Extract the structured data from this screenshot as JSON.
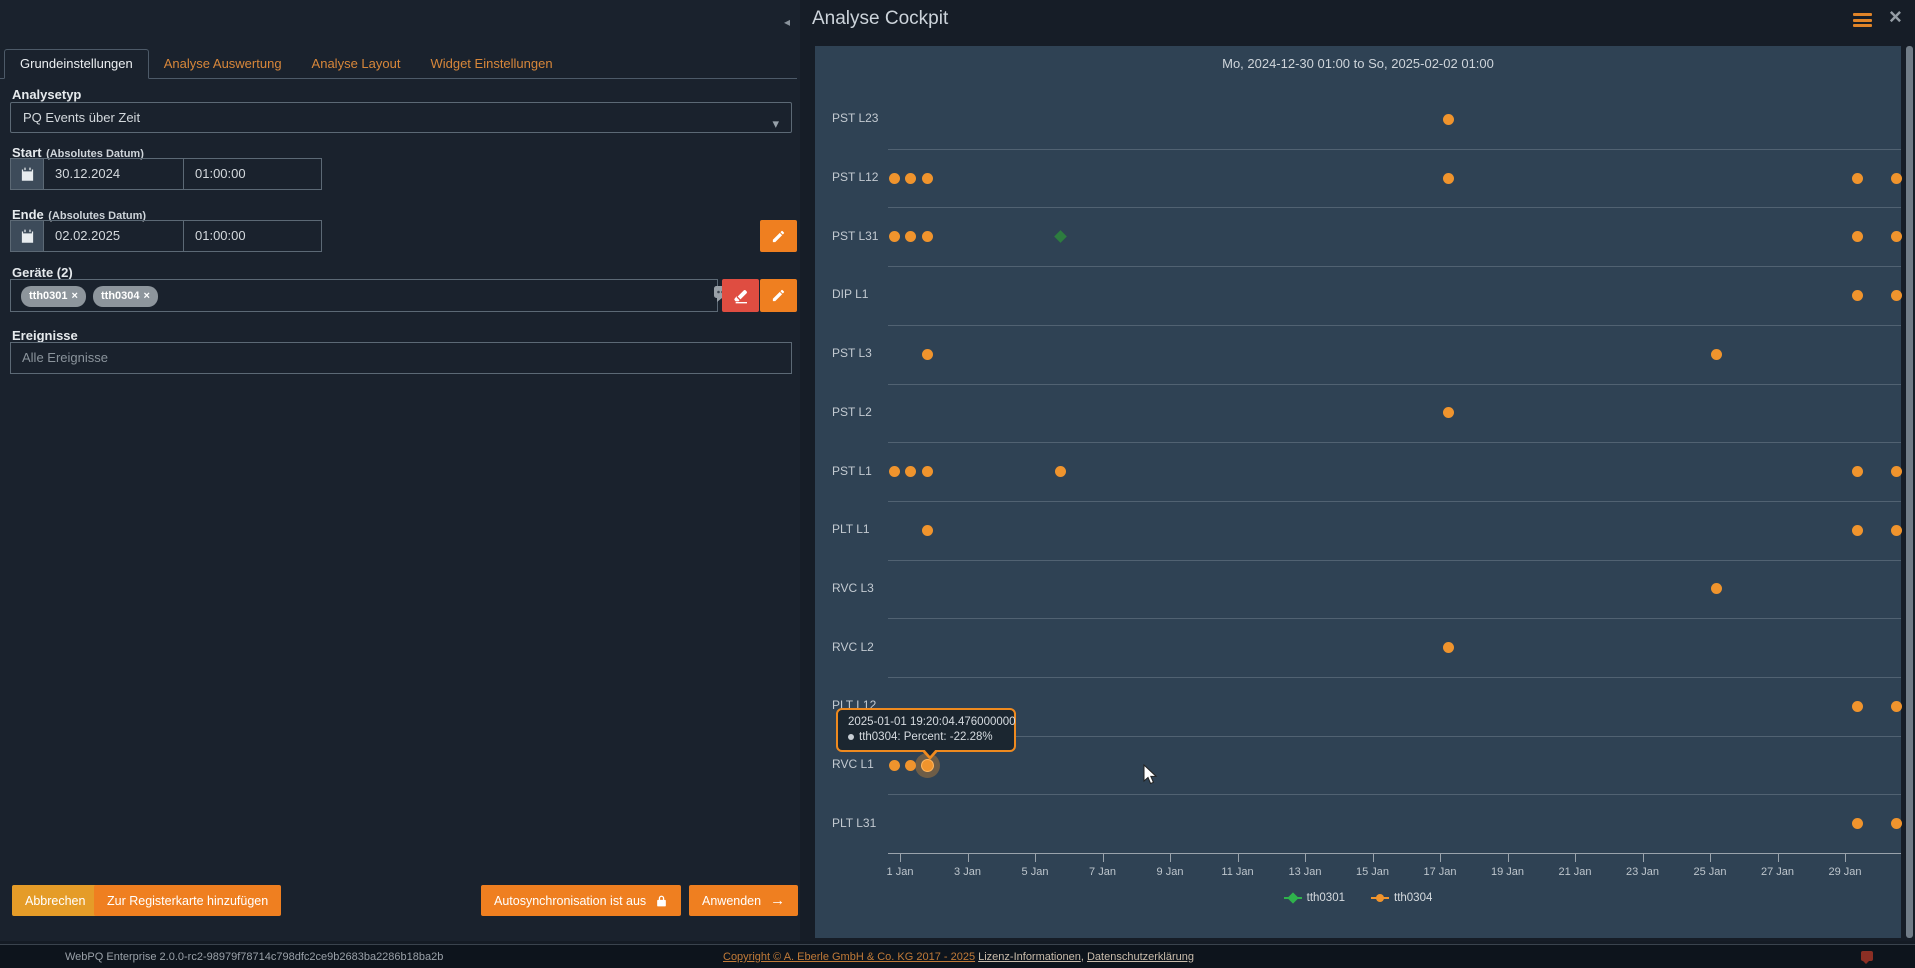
{
  "window": {
    "title": "Analyse Cockpit",
    "collapse_icon": "◂",
    "close_icon": "×"
  },
  "tabs": [
    {
      "label": "Grundeinstellungen",
      "active": true
    },
    {
      "label": "Analyse Auswertung",
      "active": false
    },
    {
      "label": "Analyse Layout",
      "active": false
    },
    {
      "label": "Widget Einstellungen",
      "active": false
    }
  ],
  "form": {
    "analysetyp_label": "Analysetyp",
    "analysetyp_value": "PQ Events über Zeit",
    "start_label": "Start",
    "ende_label": "Ende",
    "absolute_suffix": "(Absolutes Datum)",
    "start_date": "30.12.2024",
    "start_time": "01:00:00",
    "ende_date": "02.02.2025",
    "ende_time": "01:00:00",
    "geraete_label": "Geräte (2)",
    "devices": [
      "tth0301",
      "tth0304"
    ],
    "chip_close": "×",
    "ereignisse_label": "Ereignisse",
    "ereignisse_placeholder": "Alle Ereignisse"
  },
  "actions": {
    "abbrechen": "Abbrechen",
    "zur_registerkarte": "Zur Registerkarte hinzufügen",
    "autosync": "Autosynchronisation ist aus",
    "anwenden": "Anwenden",
    "anwenden_arrow": "→"
  },
  "footer": {
    "version": "WebPQ Enterprise 2.0.0-rc2-98979f78714c798dfc2ce9b2683ba2286b18ba2b",
    "copyright": "Copyright © A. Eberle GmbH & Co. KG 2017 - 2025",
    "lizenz": "Lizenz-Informationen",
    "comma": ", ",
    "datenschutz": "Datenschutzerklärung"
  },
  "chart_data": {
    "type": "scatter",
    "title": "Mo, 2024-12-30 01:00 to So, 2025-02-02 01:00",
    "x_ticks": [
      "1 Jan",
      "3 Jan",
      "5 Jan",
      "7 Jan",
      "9 Jan",
      "11 Jan",
      "13 Jan",
      "15 Jan",
      "17 Jan",
      "19 Jan",
      "21 Jan",
      "23 Jan",
      "25 Jan",
      "27 Jan",
      "29 Jan"
    ],
    "x_axis_unit": "days, 2-day tick spacing, range 2024-12-30 01:00 to 2025-02-02 01:00",
    "grid": true,
    "legend_position": "bottom-center",
    "series": [
      {
        "name": "tth0304",
        "color": "#f0942d",
        "legend_color": "#f0942d",
        "marker": "circle"
      },
      {
        "name": "tth0301",
        "color": "#2d7c3f",
        "legend_color": "#2fb24c",
        "marker": "diamond"
      }
    ],
    "rows": [
      {
        "label": "PST L23",
        "points": [
          {
            "x": 16.24,
            "s": 0
          }
        ]
      },
      {
        "label": "PST L12",
        "points": [
          {
            "x": -0.15,
            "s": 0
          },
          {
            "x": 0.3,
            "s": 0
          },
          {
            "x": 0.8,
            "s": 0
          },
          {
            "x": 16.24,
            "s": 0
          },
          {
            "x": 28.36,
            "s": 0
          },
          {
            "x": 29.54,
            "s": 0
          }
        ]
      },
      {
        "label": "PST L31",
        "points": [
          {
            "x": -0.15,
            "s": 0
          },
          {
            "x": 0.3,
            "s": 0
          },
          {
            "x": 0.8,
            "s": 0
          },
          {
            "x": 4.77,
            "s": 1
          },
          {
            "x": 28.36,
            "s": 0
          },
          {
            "x": 29.54,
            "s": 0
          }
        ]
      },
      {
        "label": "DIP L1",
        "points": [
          {
            "x": 28.36,
            "s": 0
          },
          {
            "x": 29.54,
            "s": 0
          }
        ]
      },
      {
        "label": "PST L3",
        "points": [
          {
            "x": 0.8,
            "s": 0
          },
          {
            "x": 24.2,
            "s": 0
          }
        ]
      },
      {
        "label": "PST L2",
        "points": [
          {
            "x": 16.24,
            "s": 0
          }
        ]
      },
      {
        "label": "PST L1",
        "points": [
          {
            "x": -0.15,
            "s": 0
          },
          {
            "x": 0.3,
            "s": 0
          },
          {
            "x": 0.8,
            "s": 0
          },
          {
            "x": 4.77,
            "s": 0
          },
          {
            "x": 28.36,
            "s": 0
          },
          {
            "x": 29.54,
            "s": 0
          }
        ]
      },
      {
        "label": "PLT L1",
        "points": [
          {
            "x": 0.8,
            "s": 0
          },
          {
            "x": 28.36,
            "s": 0
          },
          {
            "x": 29.54,
            "s": 0
          }
        ]
      },
      {
        "label": "RVC L3",
        "points": [
          {
            "x": 24.2,
            "s": 0
          }
        ]
      },
      {
        "label": "RVC L2",
        "points": [
          {
            "x": 16.24,
            "s": 0
          }
        ]
      },
      {
        "label": "PLT L12",
        "points": [
          {
            "x": 28.36,
            "s": 0
          },
          {
            "x": 29.54,
            "s": 0
          }
        ]
      },
      {
        "label": "RVC L1",
        "points": [
          {
            "x": -0.15,
            "s": 0
          },
          {
            "x": 0.3,
            "s": 0
          },
          {
            "x": 0.8,
            "s": 0,
            "hl": true
          }
        ]
      },
      {
        "label": "PLT L31",
        "points": [
          {
            "x": 28.36,
            "s": 0
          },
          {
            "x": 29.54,
            "s": 0
          }
        ]
      }
    ],
    "tooltip": {
      "line1": "2025-01-01 19:20:04.476000000",
      "line2": "tth0304: Percent: -22.28%",
      "row": "RVC L1",
      "x": 0.8
    }
  }
}
